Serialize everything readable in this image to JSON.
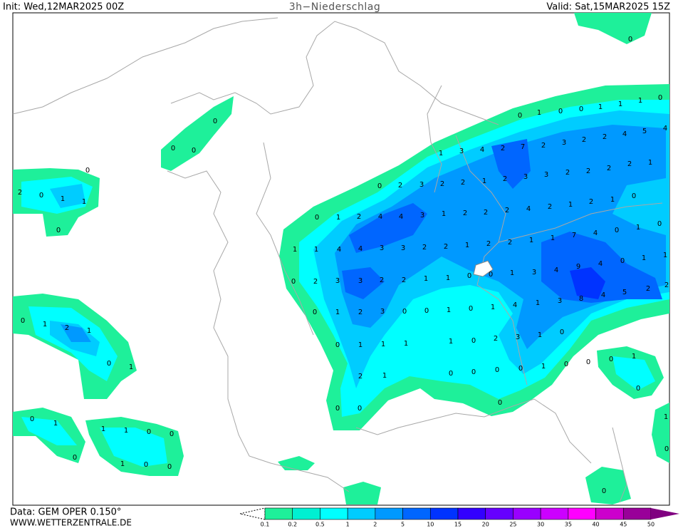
{
  "header": {
    "init": "Init: Wed,12MAR2025 00Z",
    "title": "3h−Niederschlag",
    "valid": "Valid: Sat,15MAR2025 15Z"
  },
  "footer": {
    "data": "Data: GEM OPER 0.150°",
    "site": "WWW.WETTERZENTRALE.DE"
  },
  "legend": {
    "labels": [
      0.1,
      0.2,
      0.5,
      1,
      2,
      5,
      10,
      15,
      20,
      25,
      30,
      35,
      40,
      45,
      50
    ],
    "colors": [
      "#1ef09a",
      "#00f0d2",
      "#00ffff",
      "#00ccff",
      "#0099ff",
      "#0066ff",
      "#0033ff",
      "#3300ff",
      "#6600ff",
      "#9900ff",
      "#cc00ff",
      "#ff00ff",
      "#cc00cc",
      "#990099",
      "#800080"
    ]
  },
  "map_labels": [
    0,
    0,
    1,
    0,
    0,
    1,
    1,
    1,
    0,
    0,
    0,
    0,
    0,
    2,
    0,
    1,
    1,
    0,
    1,
    3,
    4,
    2,
    7,
    2,
    3,
    2,
    2,
    4,
    5,
    4,
    0,
    2,
    3,
    2,
    2,
    1,
    2,
    3,
    3,
    2,
    2,
    2,
    2,
    1,
    0,
    0,
    1,
    2,
    4,
    4,
    3,
    1,
    2,
    2,
    2,
    4,
    2,
    1,
    2,
    1,
    0,
    1,
    0,
    4,
    7,
    1,
    1,
    2,
    2,
    1,
    2,
    2,
    3,
    3,
    4,
    4,
    1,
    1,
    1,
    1,
    0,
    4,
    9,
    4,
    3,
    1,
    0,
    0,
    1,
    1,
    2,
    2,
    3,
    3,
    2,
    0,
    2,
    2,
    5,
    4,
    8,
    3,
    1,
    4,
    1,
    0,
    1,
    0,
    0,
    3,
    2,
    1,
    0,
    0,
    1,
    2,
    1,
    0,
    1,
    3,
    2,
    0,
    1,
    1,
    1,
    1,
    0,
    1,
    0,
    0,
    0,
    1,
    0,
    0,
    0,
    0,
    1,
    2,
    0,
    1,
    0,
    0,
    0,
    0,
    0,
    1,
    1,
    1,
    1,
    0,
    0,
    0,
    0,
    1,
    0,
    0,
    0
  ]
}
